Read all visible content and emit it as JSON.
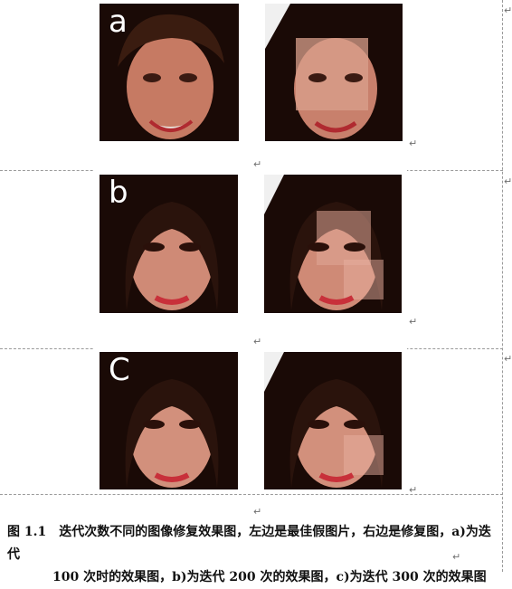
{
  "rows": [
    {
      "letter": "a"
    },
    {
      "letter": "b"
    },
    {
      "letter": "C"
    }
  ],
  "paragraph_mark": "↵",
  "caption": {
    "line1": "图 1.1　迭代次数不同的图像修复效果图，左边是最佳假图片，右边是修复图，a)为迭代",
    "line2": "100 次时的效果图，b)为迭代 200 次的效果图，c)为迭代 300 次的效果图"
  },
  "colors": {
    "skin": "#d98a7a",
    "lips": "#c8303a",
    "hair": "#2a130c",
    "rule": "#9a9a9a",
    "mask_patch": "#e8b8a4"
  }
}
